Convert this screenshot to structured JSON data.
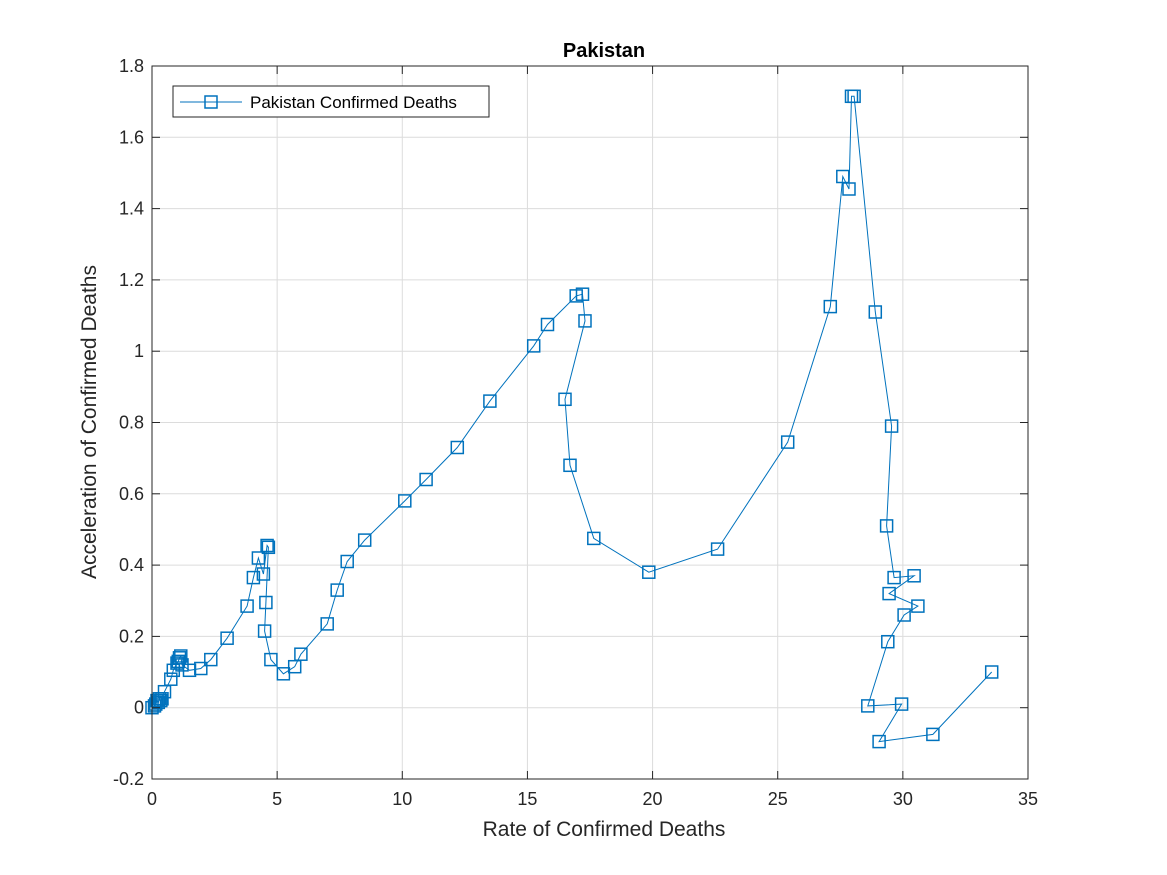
{
  "chart_data": {
    "type": "line",
    "title": "Pakistan",
    "xlabel": "Rate of Confirmed Deaths",
    "ylabel": "Acceleration of Confirmed Deaths",
    "xlim": [
      0,
      35
    ],
    "ylim": [
      -0.2,
      1.8
    ],
    "xticks": [
      0,
      5,
      10,
      15,
      20,
      25,
      30,
      35
    ],
    "yticks": [
      -0.2,
      0,
      0.2,
      0.4,
      0.6,
      0.8,
      1,
      1.2,
      1.4,
      1.6,
      1.8
    ],
    "xtick_labels": [
      "0",
      "5",
      "10",
      "15",
      "20",
      "25",
      "30",
      "35"
    ],
    "ytick_labels": [
      "-0.2",
      "0",
      "0.2",
      "0.4",
      "0.6",
      "0.8",
      "1",
      "1.2",
      "1.4",
      "1.6",
      "1.8"
    ],
    "grid": true,
    "legend_position": "top-left",
    "marker": "square",
    "color": "#0072BD",
    "series": [
      {
        "name": "Pakistan Confirmed Deaths",
        "x": [
          0.0,
          0.1,
          0.15,
          0.2,
          0.25,
          0.3,
          0.35,
          0.4,
          0.5,
          0.75,
          0.85,
          1.0,
          1.05,
          1.1,
          1.15,
          1.2,
          1.5,
          1.95,
          2.35,
          3.0,
          3.8,
          4.05,
          4.25,
          4.45,
          4.6,
          4.65,
          4.55,
          4.5,
          4.75,
          5.25,
          5.7,
          5.95,
          7.0,
          7.4,
          7.8,
          8.5,
          10.1,
          10.95,
          12.2,
          13.5,
          15.25,
          15.8,
          16.95,
          17.2,
          17.3,
          16.5,
          16.7,
          17.65,
          19.85,
          22.6,
          25.4,
          27.1,
          27.6,
          27.85,
          27.95,
          28.05,
          28.9,
          29.55,
          29.35,
          29.65,
          30.45,
          29.45,
          30.6,
          30.05,
          29.4,
          28.6,
          29.95,
          29.05,
          31.2,
          33.55
        ],
        "y": [
          0.0,
          0.005,
          0.01,
          0.02,
          0.015,
          0.025,
          0.02,
          0.025,
          0.045,
          0.08,
          0.105,
          0.125,
          0.13,
          0.14,
          0.145,
          0.12,
          0.105,
          0.11,
          0.135,
          0.195,
          0.285,
          0.365,
          0.42,
          0.375,
          0.455,
          0.45,
          0.295,
          0.215,
          0.135,
          0.095,
          0.115,
          0.15,
          0.235,
          0.33,
          0.41,
          0.47,
          0.58,
          0.64,
          0.73,
          0.86,
          1.015,
          1.075,
          1.155,
          1.16,
          1.085,
          0.865,
          0.68,
          0.475,
          0.38,
          0.445,
          0.745,
          1.125,
          1.49,
          1.455,
          1.715,
          1.715,
          1.11,
          0.79,
          0.51,
          0.365,
          0.37,
          0.32,
          0.285,
          0.26,
          0.185,
          0.005,
          0.01,
          -0.095,
          -0.075,
          0.1
        ]
      }
    ]
  }
}
